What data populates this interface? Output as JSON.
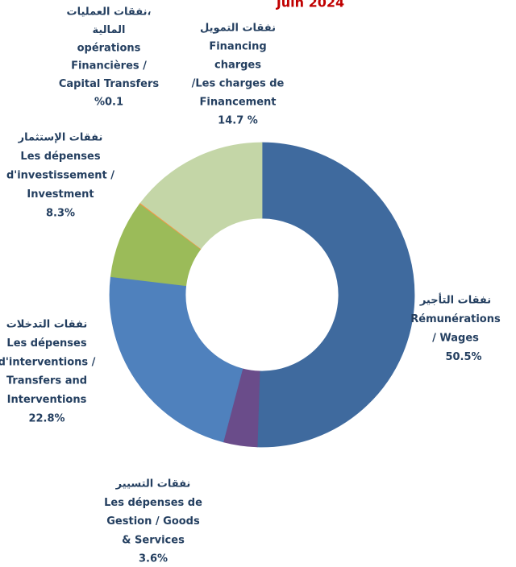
{
  "chart_data": {
    "type": "donut",
    "title": "Juin 2024",
    "categories": [
      [
        "نفقات التأجير",
        "Rémunérations",
        "/  Wages"
      ],
      [
        "نفقات التسيير",
        "Les dépenses de",
        "Gestion /  Goods",
        "& Services"
      ],
      [
        "نفقات التدخلات",
        "Les dépenses",
        "d'interventions  /",
        "Transfers and",
        "Interventions"
      ],
      [
        "نفقات الإستثمار",
        "Les dépenses",
        "d'investissement /",
        "Investment"
      ],
      [
        "نفقات العمليات،",
        "المالية",
        "opérations",
        "Financières  /",
        "Capital Transfers"
      ],
      [
        "نفقات التمويل",
        "Financing",
        "charges",
        "/Les charges de",
        "Financement"
      ]
    ],
    "values": [
      50.5,
      3.6,
      22.8,
      8.3,
      0.1,
      14.7
    ],
    "value_labels": [
      "50.5%",
      "3.6%",
      "22.8%",
      "8.3%",
      "%0.1",
      "14.7 %"
    ],
    "colors": [
      "#3F6A9E",
      "#6A4C8A",
      "#4F81BD",
      "#9BBB59",
      "#F79646",
      "#C4D6A7"
    ]
  }
}
